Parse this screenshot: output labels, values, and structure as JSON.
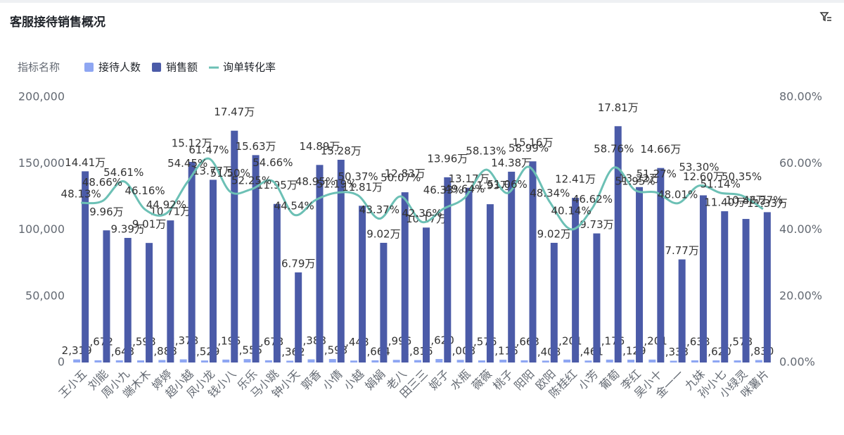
{
  "chart_data": {
    "type": "combo",
    "title": "客服接待销售概况",
    "legend_title": "指标名称",
    "legend": "top-left",
    "categories": [
      "王小五",
      "刘能",
      "周小九",
      "端木木",
      "婷婷",
      "超小越",
      "凤小龙",
      "钱小八",
      "乐乐",
      "马小跳",
      "钟小天",
      "郭香",
      "小倩",
      "小越",
      "娟娟",
      "老八",
      "田三三",
      "妮子",
      "水瓶",
      "薇薇",
      "桃子",
      "阳阳",
      "欧阳",
      "陈桂红",
      "小芳",
      "葡萄",
      "李红",
      "吴小十",
      "金一一",
      "九妹",
      "孙小七",
      "小绿灵",
      "咪薯片"
    ],
    "series": [
      {
        "name": "接待人数",
        "type": "bar",
        "color": "#8ea6f2",
        "values": [
          2319,
          1672,
          1643,
          1598,
          1888,
          2378,
          1529,
          2195,
          2555,
          1673,
          1362,
          2388,
          2593,
          1448,
          1664,
          1996,
          1816,
          2620,
          2008,
          1576,
          2116,
          1663,
          1408,
          2201,
          1461,
          2176,
          2129,
          2201,
          1333,
          1638,
          1620,
          1578,
          1830
        ],
        "value_labels": [
          "2,319",
          "1,672",
          "1,643",
          "1,598",
          "1,888",
          "2,378",
          "1,529",
          "2,195",
          "2,555",
          "1,673",
          "1,362",
          "2,388",
          "2,593",
          "1,448",
          "1,664",
          "1,996",
          "1,816",
          "2,620",
          "2,008",
          "1,576",
          "2,116",
          "1,663",
          "1,408",
          "2,201",
          "1,461",
          "2,176",
          "2,129",
          "2,201",
          "1,333",
          "1,638",
          "1,620",
          "1,578",
          "1,830"
        ]
      },
      {
        "name": "销售额",
        "type": "bar",
        "color": "#4b5ba8",
        "values": [
          144100,
          99600,
          93900,
          90100,
          107100,
          151200,
          137700,
          174700,
          156300,
          119500,
          67900,
          148900,
          152800,
          118100,
          90200,
          128300,
          101700,
          139600,
          131700,
          119300,
          143800,
          151600,
          90200,
          124100,
          97300,
          178100,
          132200,
          146600,
          77700,
          126000,
          114000,
          108200,
          113300
        ],
        "value_labels": [
          "14.41万",
          "9.96万",
          "9.39万",
          "9.01万",
          "10.71万",
          "15.12万",
          "13.77万",
          "17.47万",
          "15.63万",
          "11.95万",
          "6.79万",
          "14.89万",
          "15.28万",
          "11.81万",
          "9.02万",
          "12.83万",
          "10.17万",
          "13.96万",
          "13.17万",
          "11.93万",
          "14.38万",
          "15.16万",
          "9.02万",
          "12.41万",
          "9.73万",
          "17.81万",
          "13.22万",
          "14.66万",
          "7.77万",
          "12.60万",
          "11.40万",
          "10.82万",
          "11.33万"
        ]
      },
      {
        "name": "询单转化率",
        "type": "line",
        "axis": "y2",
        "color": "#6cc0b5",
        "values": [
          48.13,
          48.66,
          54.61,
          46.16,
          44.92,
          54.45,
          61.47,
          51.5,
          52.25,
          54.66,
          44.54,
          48.95,
          51.19,
          50.37,
          43.37,
          50.07,
          42.36,
          46.33,
          49.64,
          58.13,
          51.06,
          58.99,
          48.34,
          40.14,
          46.62,
          58.76,
          51.95,
          51.27,
          48.01,
          53.3,
          51.14,
          50.35,
          46.27
        ],
        "value_labels": [
          "48.13%",
          "48.66%",
          "54.61%",
          "46.16%",
          "44.92%",
          "54.45%",
          "61.47%",
          "51.50%",
          "52.25%",
          "54.66%",
          "44.54%",
          "48.95%",
          "51.19%",
          "50.37%",
          "43.37%",
          "50.07%",
          "42.36%",
          "46.33%",
          "49.64%",
          "58.13%",
          "51.06%",
          "58.99%",
          "48.34%",
          "40.14%",
          "46.62%",
          "58.76%",
          "51.95%",
          "51.27%",
          "48.01%",
          "53.30%",
          "51.14%",
          "50.35%",
          "46.27%"
        ]
      }
    ],
    "ylim": [
      0,
      200000
    ],
    "yticks": [
      0,
      {
        "value": 50000,
        "label": "50,000"
      },
      {
        "value": 100000,
        "label": "100,000"
      },
      {
        "value": 150000,
        "label": "150,000"
      },
      {
        "value": 200000,
        "label": "200,000"
      }
    ],
    "y2lim": [
      0,
      80
    ],
    "y2ticks": [
      {
        "value": 0,
        "label": "0.00%"
      },
      {
        "value": 20,
        "label": "20.00%"
      },
      {
        "value": 40,
        "label": "40.00%"
      },
      {
        "value": 60,
        "label": "60.00%"
      },
      {
        "value": 80,
        "label": "80.00%"
      }
    ]
  }
}
